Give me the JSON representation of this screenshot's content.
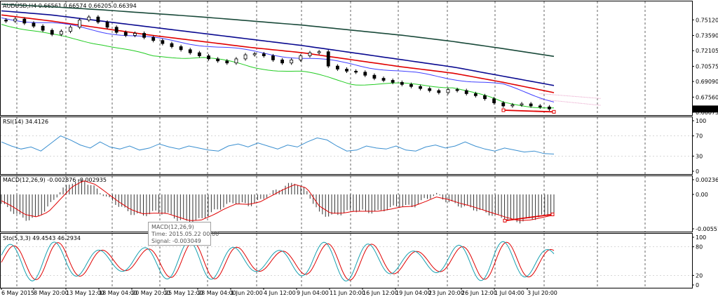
{
  "chart_data": [
    {
      "type": "candlestick",
      "header": "AUDUSD,H4 0.66561 0.66574 0.66205 0.66394",
      "current_price_label": "0.66394",
      "ylim": [
        0.66075,
        0.7665
      ],
      "yticks": [
        "0.75120",
        "0.73590",
        "0.72105",
        "0.70575",
        "0.69090",
        "0.67560",
        "0.66075"
      ],
      "x_labels": [
        "6 May 2015",
        "8 May 20:00",
        "13 May 12:00",
        "18 May 04:00",
        "20 May 20:00",
        "25 May 12:00",
        "28 May 04:00",
        "1 Jun 20:00",
        "4 Jun 12:00",
        "9 Jun 04:00",
        "11 Jun 20:00",
        "16 Jun 12:00",
        "19 Jun 04:00",
        "23 Jun 20:00",
        "26 Jun 12:00",
        "1 Jul 04:00",
        "3 Jul 20:00"
      ],
      "close_approx": [
        0.75,
        0.752,
        0.748,
        0.745,
        0.741,
        0.737,
        0.74,
        0.744,
        0.751,
        0.754,
        0.749,
        0.744,
        0.739,
        0.736,
        0.738,
        0.734,
        0.731,
        0.728,
        0.725,
        0.722,
        0.719,
        0.716,
        0.713,
        0.711,
        0.709,
        0.713,
        0.717,
        0.718,
        0.716,
        0.712,
        0.709,
        0.712,
        0.716,
        0.719,
        0.72,
        0.706,
        0.703,
        0.701,
        0.7,
        0.697,
        0.694,
        0.692,
        0.69,
        0.688,
        0.686,
        0.684,
        0.682,
        0.68,
        0.683,
        0.682,
        0.679,
        0.677,
        0.674,
        0.67,
        0.667,
        0.668,
        0.669,
        0.667,
        0.666,
        0.664
      ],
      "series": [
        {
          "color": "#1a4a3a",
          "values": [
            0.7665,
            0.764,
            0.761,
            0.7575,
            0.754,
            0.75,
            0.746,
            0.741,
            0.736,
            0.73,
            0.723,
            0.7155
          ]
        },
        {
          "color": "#0a0a90",
          "values": [
            0.76,
            0.756,
            0.75,
            0.744,
            0.738,
            0.732,
            0.726,
            0.719,
            0.712,
            0.705,
            0.696,
            0.687
          ]
        },
        {
          "color": "#e00000",
          "values": [
            0.756,
            0.75,
            0.743,
            0.736,
            0.73,
            0.724,
            0.719,
            0.712,
            0.705,
            0.699,
            0.69,
            0.68
          ]
        },
        {
          "color": "#4040ff",
          "values": [
            0.753,
            0.748,
            0.74,
            0.733,
            0.727,
            0.72,
            0.714,
            0.708,
            0.7,
            0.694,
            0.687,
            0.672
          ]
        },
        {
          "color": "#22cc22",
          "values": [
            0.748,
            0.736,
            0.728,
            0.715,
            0.715,
            0.705,
            0.7,
            0.689,
            0.688,
            0.686,
            0.67,
            0.665
          ]
        }
      ],
      "trendline": [
        [
          0.662,
          0.66
        ],
        [
          0.662,
          0.661
        ]
      ]
    },
    {
      "type": "line",
      "header": "RSI(14) 34.4126",
      "ylim": [
        0,
        100
      ],
      "yticks": [
        "100",
        "70",
        "30",
        "0"
      ],
      "values": [
        58,
        50,
        44,
        48,
        40,
        55,
        70,
        62,
        52,
        46,
        58,
        48,
        44,
        50,
        42,
        46,
        54,
        48,
        44,
        50,
        46,
        42,
        40,
        50,
        54,
        48,
        56,
        50,
        44,
        52,
        48,
        58,
        66,
        62,
        50,
        40,
        42,
        50,
        46,
        44,
        50,
        42,
        40,
        48,
        52,
        46,
        50,
        58,
        50,
        44,
        40,
        46,
        42,
        38,
        40,
        35,
        34
      ]
    },
    {
      "type": "bar",
      "header": "MACD(12,26,9) -0.002876 -0.002935",
      "ylim": [
        -0.00551,
        0.002364
      ],
      "yticks": [
        "0.002364",
        "0.00",
        "-0.00551"
      ],
      "values": [
        -0.0015,
        -0.0028,
        -0.004,
        -0.0038,
        -0.002,
        0.0005,
        0.002,
        0.0023,
        0.001,
        -0.0005,
        -0.0018,
        -0.003,
        -0.0034,
        -0.0028,
        -0.003,
        -0.004,
        -0.0045,
        -0.004,
        -0.0028,
        -0.0018,
        -0.0012,
        -0.0018,
        -0.001,
        0.0003,
        0.0012,
        0.002,
        0.0005,
        -0.003,
        -0.0035,
        -0.003,
        -0.0025,
        -0.0028,
        -0.0028,
        -0.0022,
        -0.0018,
        -0.002,
        -0.0008,
        0.0,
        -0.0012,
        -0.0018,
        -0.0022,
        -0.0028,
        -0.0034,
        -0.004,
        -0.0044,
        -0.004,
        -0.0035,
        -0.003
      ],
      "signal": [
        -0.001,
        -0.002,
        -0.0032,
        -0.0036,
        -0.0028,
        -0.0008,
        0.0012,
        0.0022,
        0.0016,
        0.0002,
        -0.0012,
        -0.0024,
        -0.0031,
        -0.003,
        -0.003,
        -0.0036,
        -0.0042,
        -0.0041,
        -0.0033,
        -0.0023,
        -0.0015,
        -0.0016,
        -0.0012,
        -0.0002,
        0.0008,
        0.0016,
        0.001,
        -0.0018,
        -0.003,
        -0.003,
        -0.0027,
        -0.0027,
        -0.0027,
        -0.0024,
        -0.002,
        -0.0019,
        -0.0012,
        -0.0004,
        -0.0008,
        -0.0014,
        -0.0019,
        -0.0025,
        -0.0031,
        -0.0037,
        -0.0042,
        -0.0041,
        -0.0037,
        -0.0033
      ],
      "tooltip": {
        "title": "MACD(12,26,9)",
        "time": "Time: 2015.05.22 00:00",
        "signal": "Signal: -0.003049"
      }
    },
    {
      "type": "line",
      "header": "Sto(5,3,3) 49.4543 46.2934",
      "ylim": [
        0,
        100
      ],
      "yticks": [
        "100",
        "80",
        "20",
        "0"
      ],
      "main_color": "#17a0b0",
      "signal_color": "#e00000",
      "period": 5.6,
      "phase": 0.4
    }
  ]
}
